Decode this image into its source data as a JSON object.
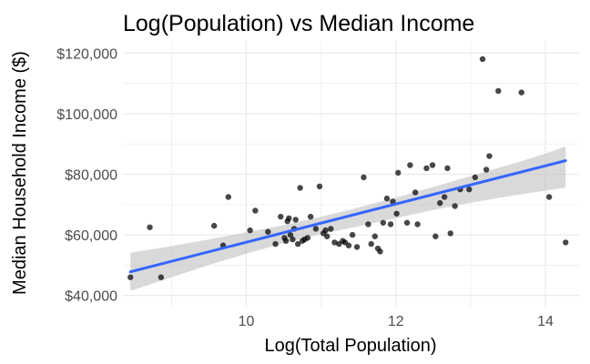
{
  "chart_data": {
    "type": "scatter",
    "title": "Log(Population) vs Median Income",
    "xlabel": "Log(Total Population)",
    "ylabel": "Median Household Income ($)",
    "xlim": [
      8.35,
      14.45
    ],
    "ylim": [
      36000,
      124000
    ],
    "x_ticks": [
      10,
      12,
      14
    ],
    "x_tick_labels": [
      "10",
      "12",
      "14"
    ],
    "x_minor_ticks": [
      9,
      11,
      13
    ],
    "y_ticks": [
      40000,
      60000,
      80000,
      100000,
      120000
    ],
    "y_tick_labels": [
      "$40,000",
      "$60,000",
      "$80,000",
      "$100,000",
      "$120,000"
    ],
    "y_minor_ticks": [
      50000,
      70000,
      90000,
      110000
    ],
    "grid": true,
    "legend": "none",
    "colors": {
      "points": "#000000",
      "trend_line": "#3366ff",
      "confidence_band": "#bfbfbf",
      "grid": "#ebebeb"
    },
    "points": [
      {
        "x": 8.45,
        "y": 46000
      },
      {
        "x": 8.71,
        "y": 62500
      },
      {
        "x": 8.86,
        "y": 46000
      },
      {
        "x": 9.57,
        "y": 63000
      },
      {
        "x": 9.69,
        "y": 56500
      },
      {
        "x": 9.76,
        "y": 72500
      },
      {
        "x": 10.05,
        "y": 61500
      },
      {
        "x": 10.12,
        "y": 68000
      },
      {
        "x": 10.29,
        "y": 61000
      },
      {
        "x": 10.39,
        "y": 57000
      },
      {
        "x": 10.46,
        "y": 66000
      },
      {
        "x": 10.51,
        "y": 59000
      },
      {
        "x": 10.53,
        "y": 58000
      },
      {
        "x": 10.55,
        "y": 64500
      },
      {
        "x": 10.57,
        "y": 65500
      },
      {
        "x": 10.59,
        "y": 60000
      },
      {
        "x": 10.62,
        "y": 58500
      },
      {
        "x": 10.64,
        "y": 62000
      },
      {
        "x": 10.66,
        "y": 65000
      },
      {
        "x": 10.69,
        "y": 57000
      },
      {
        "x": 10.72,
        "y": 75500
      },
      {
        "x": 10.75,
        "y": 58000
      },
      {
        "x": 10.78,
        "y": 58500
      },
      {
        "x": 10.82,
        "y": 59000
      },
      {
        "x": 10.86,
        "y": 66000
      },
      {
        "x": 10.93,
        "y": 62000
      },
      {
        "x": 10.98,
        "y": 76000
      },
      {
        "x": 11.03,
        "y": 60500
      },
      {
        "x": 11.06,
        "y": 61500
      },
      {
        "x": 11.08,
        "y": 59500
      },
      {
        "x": 11.13,
        "y": 62000
      },
      {
        "x": 11.18,
        "y": 57500
      },
      {
        "x": 11.24,
        "y": 57000
      },
      {
        "x": 11.29,
        "y": 58000
      },
      {
        "x": 11.32,
        "y": 57500
      },
      {
        "x": 11.37,
        "y": 56500
      },
      {
        "x": 11.42,
        "y": 60000
      },
      {
        "x": 11.48,
        "y": 56000
      },
      {
        "x": 11.57,
        "y": 79000
      },
      {
        "x": 11.63,
        "y": 63500
      },
      {
        "x": 11.67,
        "y": 57000
      },
      {
        "x": 11.72,
        "y": 59500
      },
      {
        "x": 11.76,
        "y": 55500
      },
      {
        "x": 11.79,
        "y": 54500
      },
      {
        "x": 11.83,
        "y": 64000
      },
      {
        "x": 11.88,
        "y": 72000
      },
      {
        "x": 11.93,
        "y": 63500
      },
      {
        "x": 11.96,
        "y": 71000
      },
      {
        "x": 12.01,
        "y": 67000
      },
      {
        "x": 12.03,
        "y": 80500
      },
      {
        "x": 12.15,
        "y": 64000
      },
      {
        "x": 12.19,
        "y": 83000
      },
      {
        "x": 12.26,
        "y": 74000
      },
      {
        "x": 12.29,
        "y": 63500
      },
      {
        "x": 12.41,
        "y": 82000
      },
      {
        "x": 12.49,
        "y": 83000
      },
      {
        "x": 12.53,
        "y": 59500
      },
      {
        "x": 12.59,
        "y": 70500
      },
      {
        "x": 12.65,
        "y": 72500
      },
      {
        "x": 12.69,
        "y": 82000
      },
      {
        "x": 12.73,
        "y": 60500
      },
      {
        "x": 12.79,
        "y": 69500
      },
      {
        "x": 12.86,
        "y": 75000
      },
      {
        "x": 12.98,
        "y": 75000
      },
      {
        "x": 13.06,
        "y": 79000
      },
      {
        "x": 13.16,
        "y": 118000
      },
      {
        "x": 13.21,
        "y": 81500
      },
      {
        "x": 13.25,
        "y": 86000
      },
      {
        "x": 13.37,
        "y": 107500
      },
      {
        "x": 13.68,
        "y": 107000
      },
      {
        "x": 14.05,
        "y": 72500
      },
      {
        "x": 14.27,
        "y": 57500
      }
    ],
    "trend_line": {
      "x": [
        8.45,
        14.27
      ],
      "y": [
        47800,
        84500
      ]
    },
    "confidence_band": {
      "x": [
        8.45,
        9.0,
        9.5,
        10.0,
        10.5,
        11.0,
        11.5,
        12.0,
        12.5,
        13.0,
        13.5,
        14.0,
        14.27
      ],
      "lower": [
        41500,
        46000,
        50100,
        53800,
        57300,
        60300,
        62800,
        65500,
        68200,
        70600,
        72700,
        74600,
        75600
      ],
      "upper": [
        54100,
        56300,
        58500,
        60800,
        63200,
        66000,
        69000,
        72300,
        75800,
        79400,
        83000,
        86800,
        89200
      ]
    }
  }
}
